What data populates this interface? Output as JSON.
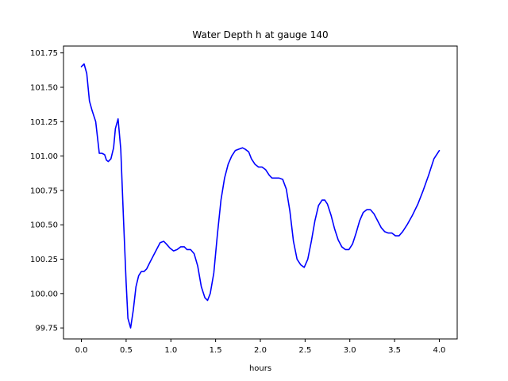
{
  "chart_data": {
    "type": "line",
    "title": "Water Depth h at gauge 140",
    "xlabel": "hours",
    "ylabel": "",
    "xlim": [
      -0.2,
      4.2
    ],
    "ylim": [
      99.67,
      101.8
    ],
    "xticks": [
      0.0,
      0.5,
      1.0,
      1.5,
      2.0,
      2.5,
      3.0,
      3.5,
      4.0
    ],
    "xtick_labels": [
      "0.0",
      "0.5",
      "1.0",
      "1.5",
      "2.0",
      "2.5",
      "3.0",
      "3.5",
      "4.0"
    ],
    "yticks": [
      99.75,
      100.0,
      100.25,
      100.5,
      100.75,
      101.0,
      101.25,
      101.5,
      101.75
    ],
    "ytick_labels": [
      "99.75",
      "100.00",
      "100.25",
      "100.50",
      "100.75",
      "101.00",
      "101.25",
      "101.50",
      "101.75"
    ],
    "grid": false,
    "series": [
      {
        "color": "#0000ff",
        "x": [
          0.0,
          0.03,
          0.06,
          0.09,
          0.12,
          0.16,
          0.2,
          0.23,
          0.26,
          0.28,
          0.3,
          0.33,
          0.36,
          0.38,
          0.41,
          0.44,
          0.47,
          0.5,
          0.52,
          0.55,
          0.58,
          0.61,
          0.64,
          0.67,
          0.7,
          0.73,
          0.76,
          0.8,
          0.84,
          0.88,
          0.92,
          0.95,
          0.99,
          1.03,
          1.07,
          1.11,
          1.15,
          1.18,
          1.22,
          1.26,
          1.3,
          1.34,
          1.38,
          1.41,
          1.44,
          1.48,
          1.52,
          1.56,
          1.6,
          1.64,
          1.68,
          1.72,
          1.76,
          1.8,
          1.83,
          1.87,
          1.9,
          1.94,
          1.98,
          2.02,
          2.06,
          2.1,
          2.13,
          2.17,
          2.21,
          2.25,
          2.29,
          2.33,
          2.37,
          2.41,
          2.45,
          2.49,
          2.53,
          2.57,
          2.61,
          2.65,
          2.69,
          2.72,
          2.75,
          2.79,
          2.83,
          2.87,
          2.91,
          2.95,
          2.99,
          3.03,
          3.07,
          3.11,
          3.15,
          3.19,
          3.23,
          3.27,
          3.31,
          3.35,
          3.39,
          3.43,
          3.47,
          3.51,
          3.55,
          3.59,
          3.64,
          3.7,
          3.76,
          3.82,
          3.88,
          3.94,
          4.0
        ],
        "y": [
          101.65,
          101.67,
          101.6,
          101.4,
          101.33,
          101.25,
          101.02,
          101.02,
          101.01,
          100.97,
          100.96,
          100.98,
          101.06,
          101.2,
          101.27,
          101.05,
          100.55,
          100.08,
          99.82,
          99.75,
          99.88,
          100.05,
          100.13,
          100.16,
          100.16,
          100.18,
          100.22,
          100.27,
          100.32,
          100.37,
          100.38,
          100.36,
          100.33,
          100.31,
          100.32,
          100.34,
          100.34,
          100.32,
          100.32,
          100.29,
          100.2,
          100.05,
          99.97,
          99.95,
          100.0,
          100.15,
          100.43,
          100.68,
          100.84,
          100.94,
          101.0,
          101.04,
          101.05,
          101.06,
          101.05,
          101.03,
          100.98,
          100.94,
          100.92,
          100.92,
          100.9,
          100.86,
          100.84,
          100.84,
          100.84,
          100.83,
          100.76,
          100.6,
          100.38,
          100.25,
          100.21,
          100.19,
          100.25,
          100.38,
          100.53,
          100.64,
          100.68,
          100.68,
          100.65,
          100.57,
          100.47,
          100.39,
          100.34,
          100.32,
          100.32,
          100.36,
          100.44,
          100.53,
          100.59,
          100.61,
          100.61,
          100.58,
          100.53,
          100.48,
          100.45,
          100.44,
          100.44,
          100.42,
          100.42,
          100.45,
          100.5,
          100.57,
          100.65,
          100.75,
          100.86,
          100.98,
          101.04
        ]
      }
    ]
  }
}
